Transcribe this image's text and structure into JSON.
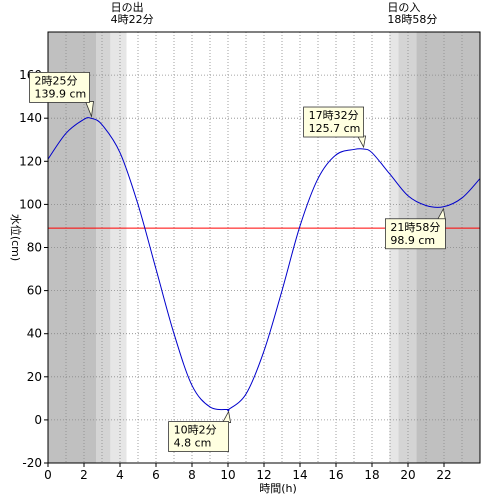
{
  "chart_data": {
    "type": "line",
    "xlabel": "時間(h)",
    "ylabel": "水位(cm)",
    "xlim": [
      0,
      24
    ],
    "ylim": [
      -20,
      180
    ],
    "xticks": [
      0,
      2,
      4,
      6,
      8,
      10,
      12,
      14,
      16,
      18,
      20,
      22
    ],
    "yticks": [
      -20,
      0,
      20,
      40,
      60,
      80,
      100,
      120,
      140,
      160
    ],
    "grid": true,
    "reference_line": {
      "value": 89,
      "color": "#ff0000"
    },
    "sunrise": {
      "label": "日の出",
      "time_label": "4時22分",
      "hour": 4.3667
    },
    "sunset": {
      "label": "日の入",
      "time_label": "18時58分",
      "hour": 18.9667
    },
    "series": [
      {
        "color": "#0000cc",
        "x": [
          0,
          1,
          2,
          2.4167,
          3,
          4,
          5,
          6,
          7,
          8,
          9,
          10,
          10.0333,
          11,
          12,
          13,
          14,
          15,
          16,
          17,
          17.5333,
          18,
          19,
          20,
          21,
          21.9667,
          23,
          24
        ],
        "y": [
          121,
          133,
          139.5,
          139.9,
          137,
          124,
          100,
          70,
          40,
          16,
          6,
          4.8,
          4.8,
          12,
          32,
          60,
          90,
          112,
          123,
          125.5,
          125.7,
          124,
          114,
          104,
          99.5,
          98.9,
          103,
          112
        ]
      }
    ],
    "annotations": [
      {
        "time": "2時25分",
        "value": "139.9 cm",
        "x": 2.4167,
        "y": 139.9
      },
      {
        "time": "10時2分",
        "value": "4.8 cm",
        "x": 10.0333,
        "y": 4.8
      },
      {
        "time": "17時32分",
        "value": "125.7 cm",
        "x": 17.5333,
        "y": 125.7
      },
      {
        "time": "21時58分",
        "value": "98.9 cm",
        "x": 21.9667,
        "y": 98.9
      }
    ]
  }
}
